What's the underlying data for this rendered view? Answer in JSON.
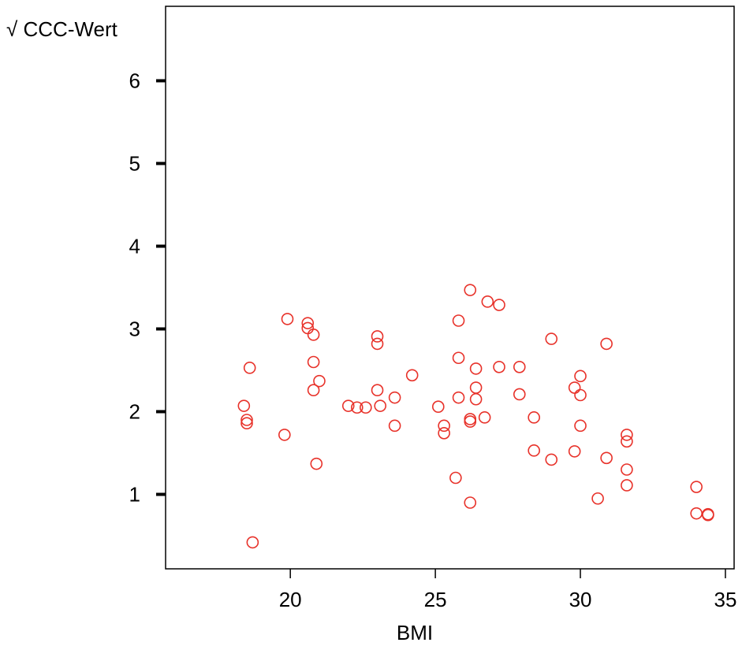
{
  "chart_data": {
    "type": "scatter",
    "title": "",
    "xlabel": "BMI",
    "ylabel": "√ CCC-Wert",
    "xlim": [
      15.7,
      35.3
    ],
    "ylim": [
      0.1,
      6.9
    ],
    "x_ticks": [
      20,
      25,
      30,
      35
    ],
    "y_ticks": [
      1,
      2,
      3,
      4,
      5,
      6
    ],
    "grid": false,
    "legend": "none",
    "marker": "open-circle",
    "marker_color": "#e8322a",
    "points": [
      {
        "x": 18.4,
        "y": 2.07
      },
      {
        "x": 18.5,
        "y": 1.9
      },
      {
        "x": 18.5,
        "y": 1.86
      },
      {
        "x": 18.6,
        "y": 2.53
      },
      {
        "x": 18.7,
        "y": 0.42
      },
      {
        "x": 19.8,
        "y": 1.72
      },
      {
        "x": 19.9,
        "y": 3.12
      },
      {
        "x": 20.6,
        "y": 3.07
      },
      {
        "x": 20.6,
        "y": 3.01
      },
      {
        "x": 20.8,
        "y": 2.93
      },
      {
        "x": 20.8,
        "y": 2.6
      },
      {
        "x": 20.8,
        "y": 2.26
      },
      {
        "x": 20.9,
        "y": 1.37
      },
      {
        "x": 21.0,
        "y": 2.37
      },
      {
        "x": 22.0,
        "y": 2.07
      },
      {
        "x": 22.3,
        "y": 2.05
      },
      {
        "x": 22.6,
        "y": 2.05
      },
      {
        "x": 23.0,
        "y": 2.91
      },
      {
        "x": 23.0,
        "y": 2.82
      },
      {
        "x": 23.0,
        "y": 2.26
      },
      {
        "x": 23.1,
        "y": 2.07
      },
      {
        "x": 23.6,
        "y": 2.17
      },
      {
        "x": 23.6,
        "y": 1.83
      },
      {
        "x": 24.2,
        "y": 2.44
      },
      {
        "x": 25.1,
        "y": 2.06
      },
      {
        "x": 25.3,
        "y": 1.83
      },
      {
        "x": 25.3,
        "y": 1.74
      },
      {
        "x": 25.7,
        "y": 1.2
      },
      {
        "x": 25.8,
        "y": 2.65
      },
      {
        "x": 25.8,
        "y": 2.17
      },
      {
        "x": 25.8,
        "y": 3.1
      },
      {
        "x": 26.2,
        "y": 3.47
      },
      {
        "x": 26.2,
        "y": 1.91
      },
      {
        "x": 26.2,
        "y": 1.88
      },
      {
        "x": 26.2,
        "y": 0.9
      },
      {
        "x": 26.4,
        "y": 2.52
      },
      {
        "x": 26.4,
        "y": 2.29
      },
      {
        "x": 26.4,
        "y": 2.15
      },
      {
        "x": 26.7,
        "y": 1.93
      },
      {
        "x": 26.8,
        "y": 3.33
      },
      {
        "x": 27.2,
        "y": 3.29
      },
      {
        "x": 27.2,
        "y": 2.54
      },
      {
        "x": 27.9,
        "y": 2.54
      },
      {
        "x": 27.9,
        "y": 2.21
      },
      {
        "x": 28.4,
        "y": 1.93
      },
      {
        "x": 28.4,
        "y": 1.53
      },
      {
        "x": 29.0,
        "y": 2.88
      },
      {
        "x": 29.0,
        "y": 1.42
      },
      {
        "x": 29.8,
        "y": 2.29
      },
      {
        "x": 29.8,
        "y": 1.52
      },
      {
        "x": 30.0,
        "y": 2.43
      },
      {
        "x": 30.0,
        "y": 2.2
      },
      {
        "x": 30.0,
        "y": 1.83
      },
      {
        "x": 30.6,
        "y": 0.95
      },
      {
        "x": 30.9,
        "y": 2.82
      },
      {
        "x": 30.9,
        "y": 1.44
      },
      {
        "x": 31.6,
        "y": 1.72
      },
      {
        "x": 31.6,
        "y": 1.64
      },
      {
        "x": 31.6,
        "y": 1.3
      },
      {
        "x": 31.6,
        "y": 1.11
      },
      {
        "x": 34.0,
        "y": 1.09
      },
      {
        "x": 34.0,
        "y": 0.77
      },
      {
        "x": 34.4,
        "y": 0.76
      },
      {
        "x": 34.4,
        "y": 0.75
      }
    ]
  }
}
